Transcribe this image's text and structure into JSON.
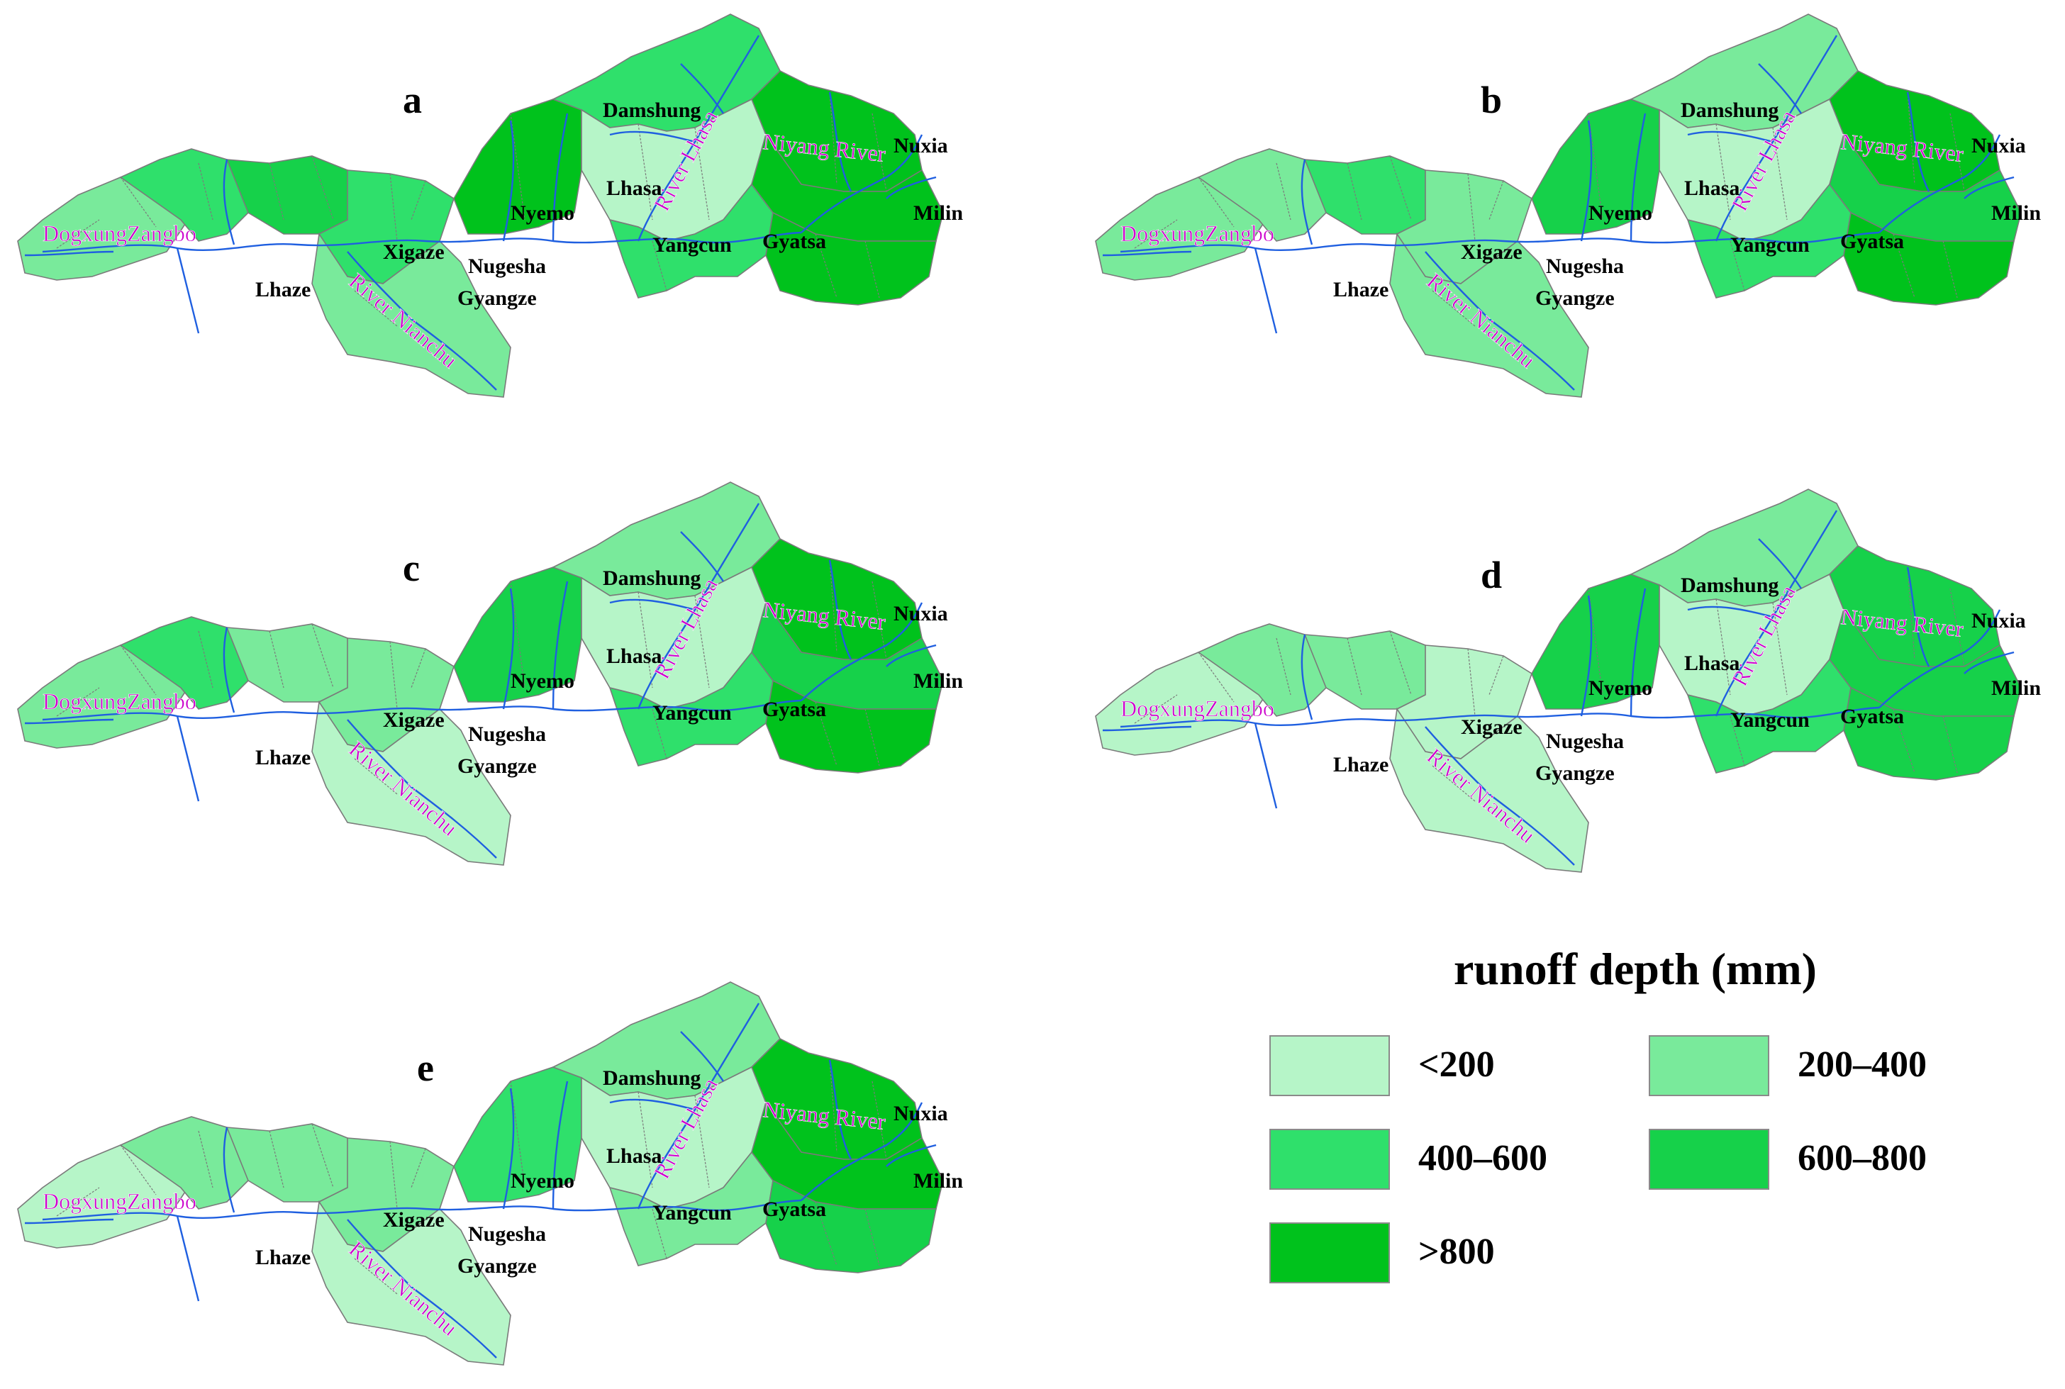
{
  "legend": {
    "title": "runoff depth (mm)",
    "classes": [
      {
        "label": "<200",
        "color": "#b6f5c8"
      },
      {
        "label": "200–400",
        "color": "#79ea9b"
      },
      {
        "label": "400–600",
        "color": "#2fe06b"
      },
      {
        "label": "600–800",
        "color": "#16d14a"
      },
      {
        "label": ">800",
        "color": "#00c21c"
      }
    ]
  },
  "colors": {
    "river": "#1f5fe0",
    "river_label": "#cc00cc",
    "boundary": "#7a7a7a",
    "town_label": "#000000"
  },
  "labels": {
    "dogxung": "DogxungZangbo",
    "lhasa_river": "River Lhasa",
    "niyang": "Niyang River",
    "nianchu": "River Nianchu",
    "damshung": "Damshung",
    "lhasa": "Lhasa",
    "nyemo": "Nyemo",
    "xigaze": "Xigaze",
    "nugesha": "Nugesha",
    "gyangze": "Gyangze",
    "lhaze": "Lhaze",
    "yangcun": "Yangcun",
    "gyatsa": "Gyatsa",
    "nuxia": "Nuxia",
    "milin": "Milin"
  },
  "panels": [
    {
      "id": "a",
      "letter": "a",
      "regions": {
        "west": 1,
        "west_mid": 2,
        "central_west": 3,
        "central": 2,
        "nianchu": 1,
        "nyemo_north": 4,
        "damshung": 2,
        "lhasa_basin": 0,
        "yangcun": 2,
        "niyang": 4,
        "niyang_mid": 4,
        "gyatsa_south": 4
      }
    },
    {
      "id": "b",
      "letter": "b",
      "regions": {
        "west": 1,
        "west_mid": 1,
        "central_west": 2,
        "central": 1,
        "nianchu": 1,
        "nyemo_north": 3,
        "damshung": 1,
        "lhasa_basin": 0,
        "yangcun": 2,
        "niyang": 4,
        "niyang_mid": 3,
        "gyatsa_south": 4
      }
    },
    {
      "id": "c",
      "letter": "c",
      "regions": {
        "west": 1,
        "west_mid": 2,
        "central_west": 1,
        "central": 1,
        "nianchu": 0,
        "nyemo_north": 3,
        "damshung": 1,
        "lhasa_basin": 0,
        "yangcun": 2,
        "niyang": 4,
        "niyang_mid": 3,
        "gyatsa_south": 4
      }
    },
    {
      "id": "d",
      "letter": "d",
      "regions": {
        "west": 0,
        "west_mid": 1,
        "central_west": 1,
        "central": 0,
        "nianchu": 0,
        "nyemo_north": 3,
        "damshung": 1,
        "lhasa_basin": 0,
        "yangcun": 2,
        "niyang": 3,
        "niyang_mid": 3,
        "gyatsa_south": 3
      }
    },
    {
      "id": "e",
      "letter": "e",
      "regions": {
        "west": 0,
        "west_mid": 1,
        "central_west": 1,
        "central": 1,
        "nianchu": 0,
        "nyemo_north": 2,
        "damshung": 1,
        "lhasa_basin": 0,
        "yangcun": 1,
        "niyang": 4,
        "niyang_mid": 4,
        "gyatsa_south": 3
      }
    }
  ]
}
